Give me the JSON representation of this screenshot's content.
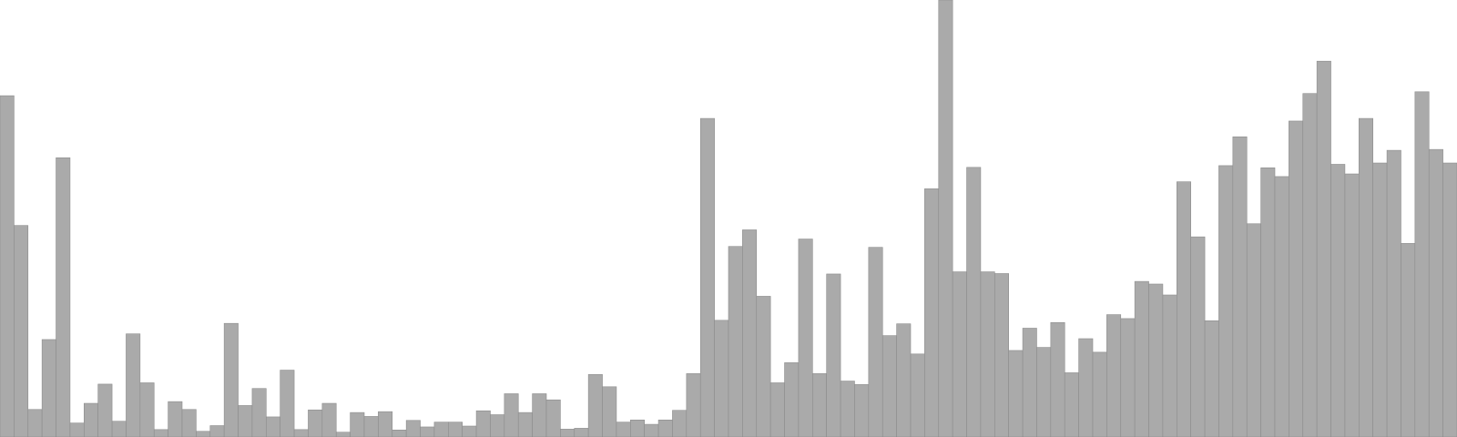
{
  "chart_data": {
    "type": "bar",
    "title": "",
    "xlabel": "",
    "ylabel": "",
    "ylim": [
      0,
      100
    ],
    "grid": false,
    "legend": "none",
    "bar_color": "#aaaaaa",
    "bar_stroke": "#8c8c8c",
    "background": "#ffffff",
    "values": [
      78.1,
      48.4,
      6.3,
      22.3,
      63.9,
      3.2,
      7.7,
      12.1,
      3.6,
      23.6,
      12.4,
      1.7,
      8.1,
      6.3,
      1.3,
      2.6,
      26.0,
      7.2,
      11.1,
      4.6,
      15.3,
      1.7,
      6.2,
      7.7,
      1.1,
      5.6,
      4.7,
      5.8,
      1.6,
      3.8,
      2.3,
      3.4,
      3.4,
      2.5,
      6.0,
      5.1,
      9.9,
      5.6,
      9.9,
      8.5,
      1.8,
      2.0,
      14.3,
      11.5,
      3.4,
      3.9,
      2.9,
      3.9,
      6.1,
      14.5,
      72.9,
      26.7,
      43.6,
      47.4,
      32.2,
      12.4,
      17.0,
      45.3,
      14.5,
      37.3,
      12.8,
      12.0,
      43.4,
      23.2,
      25.9,
      19.0,
      56.8,
      100.0,
      37.8,
      61.7,
      37.8,
      37.4,
      19.8,
      24.9,
      20.5,
      26.2,
      14.7,
      22.5,
      19.4,
      28.0,
      27.1,
      35.6,
      35.0,
      32.5,
      58.4,
      45.8,
      26.6,
      62.1,
      68.7,
      48.8,
      61.6,
      59.6,
      72.3,
      78.6,
      86.0,
      62.4,
      60.2,
      72.9,
      62.7,
      65.6,
      44.3,
      79.0,
      65.8,
      62.7
    ]
  }
}
